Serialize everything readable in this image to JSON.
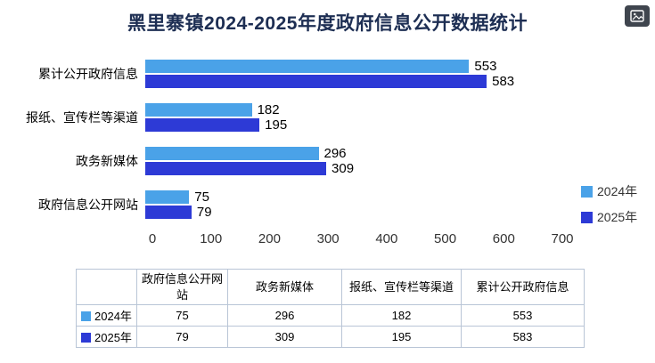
{
  "title": "黑里寨镇2024-2025年度政府信息公开数据统计",
  "toolbox": {
    "save_image_icon": "save-as-image"
  },
  "chart_data": {
    "type": "bar",
    "orientation": "horizontal",
    "title": "黑里寨镇2024-2025年度政府信息公开数据统计",
    "categories": [
      "累计公开政府信息",
      "报纸、宣传栏等渠道",
      "政务新媒体",
      "政府信息公开网站"
    ],
    "series": [
      {
        "name": "2024年",
        "color": "#4aa2e8",
        "values": [
          553,
          182,
          296,
          75
        ]
      },
      {
        "name": "2025年",
        "color": "#2d3ad6",
        "values": [
          583,
          195,
          309,
          79
        ]
      }
    ],
    "xlabel": "",
    "ylabel": "",
    "xlim": [
      0,
      700
    ],
    "xticks": [
      0,
      100,
      200,
      300,
      400,
      500,
      600,
      700
    ],
    "grid": false,
    "legend_position": "right",
    "legend": [
      "2024年",
      "2025年"
    ]
  },
  "table": {
    "header": [
      "",
      "政府信息公开网站",
      "政务新媒体",
      "报纸、宣传栏等渠道",
      "累计公开政府信息"
    ],
    "rows": [
      {
        "label": "2024年",
        "color": "#4aa2e8",
        "values": [
          "75",
          "296",
          "182",
          "553"
        ]
      },
      {
        "label": "2025年",
        "color": "#2d3ad6",
        "values": [
          "79",
          "309",
          "195",
          "583"
        ]
      }
    ]
  }
}
